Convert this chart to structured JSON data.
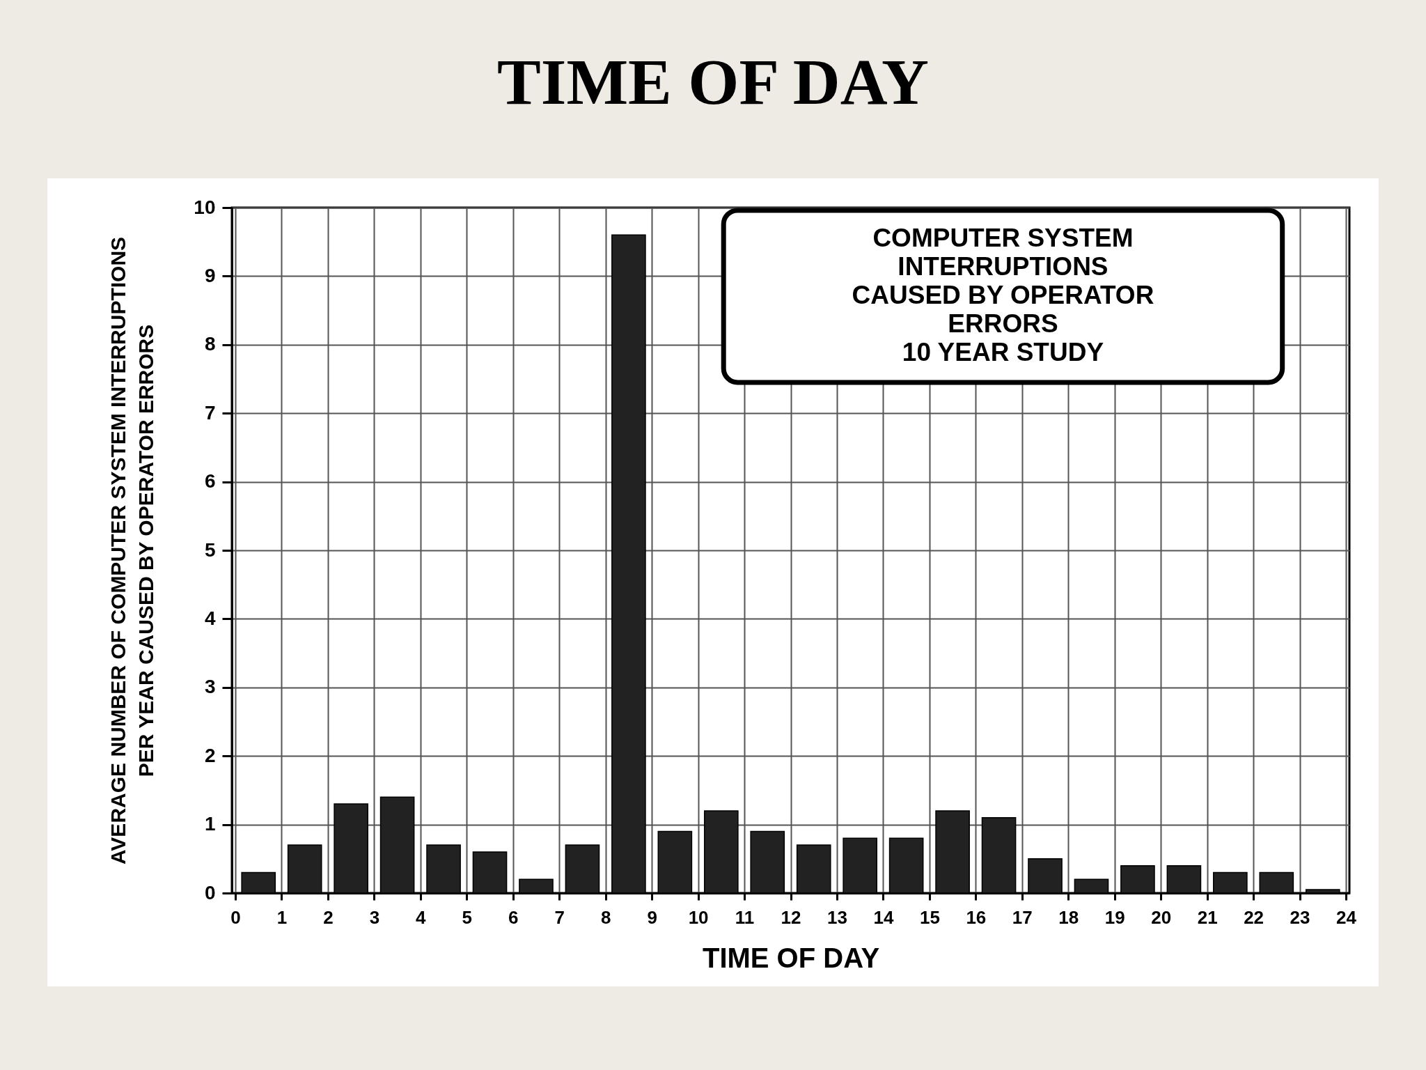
{
  "chart_data": {
    "type": "bar",
    "title": "TIME OF DAY",
    "xlabel": "TIME OF DAY",
    "ylabel": "AVERAGE NUMBER OF COMPUTER SYSTEM INTERRUPTIONS\nPER YEAR CAUSED BY OPERATOR ERRORS",
    "annotations": [
      "COMPUTER SYSTEM\nINTERRUPTIONS\nCAUSED BY OPERATOR\nERRORS\n10 YEAR STUDY"
    ],
    "x": [
      0.5,
      1.5,
      2.5,
      3.5,
      4.5,
      5.5,
      6.5,
      7.5,
      8.5,
      9.5,
      10.5,
      11.5,
      12.5,
      13.5,
      14.5,
      15.5,
      16.5,
      17.5,
      18.5,
      19.5,
      20.5,
      21.5,
      22.5,
      23.5
    ],
    "values": [
      0.3,
      0.7,
      1.3,
      1.4,
      0.7,
      0.6,
      0.2,
      0.7,
      9.6,
      0.9,
      1.2,
      0.9,
      0.7,
      0.8,
      0.8,
      1.2,
      1.1,
      0.5,
      0.2,
      0.4,
      0.4,
      0.3,
      0.3,
      0.05
    ],
    "color": "#222222",
    "xlim": [
      0,
      24
    ],
    "xticks": [
      0,
      1,
      2,
      3,
      4,
      5,
      6,
      7,
      8,
      9,
      10,
      11,
      12,
      13,
      14,
      15,
      16,
      17,
      18,
      19,
      20,
      21,
      22,
      23,
      24
    ],
    "ylim": [
      0,
      10
    ],
    "yticks": [
      0,
      1,
      2,
      3,
      4,
      5,
      6,
      7,
      8,
      9,
      10
    ],
    "grid": true
  }
}
